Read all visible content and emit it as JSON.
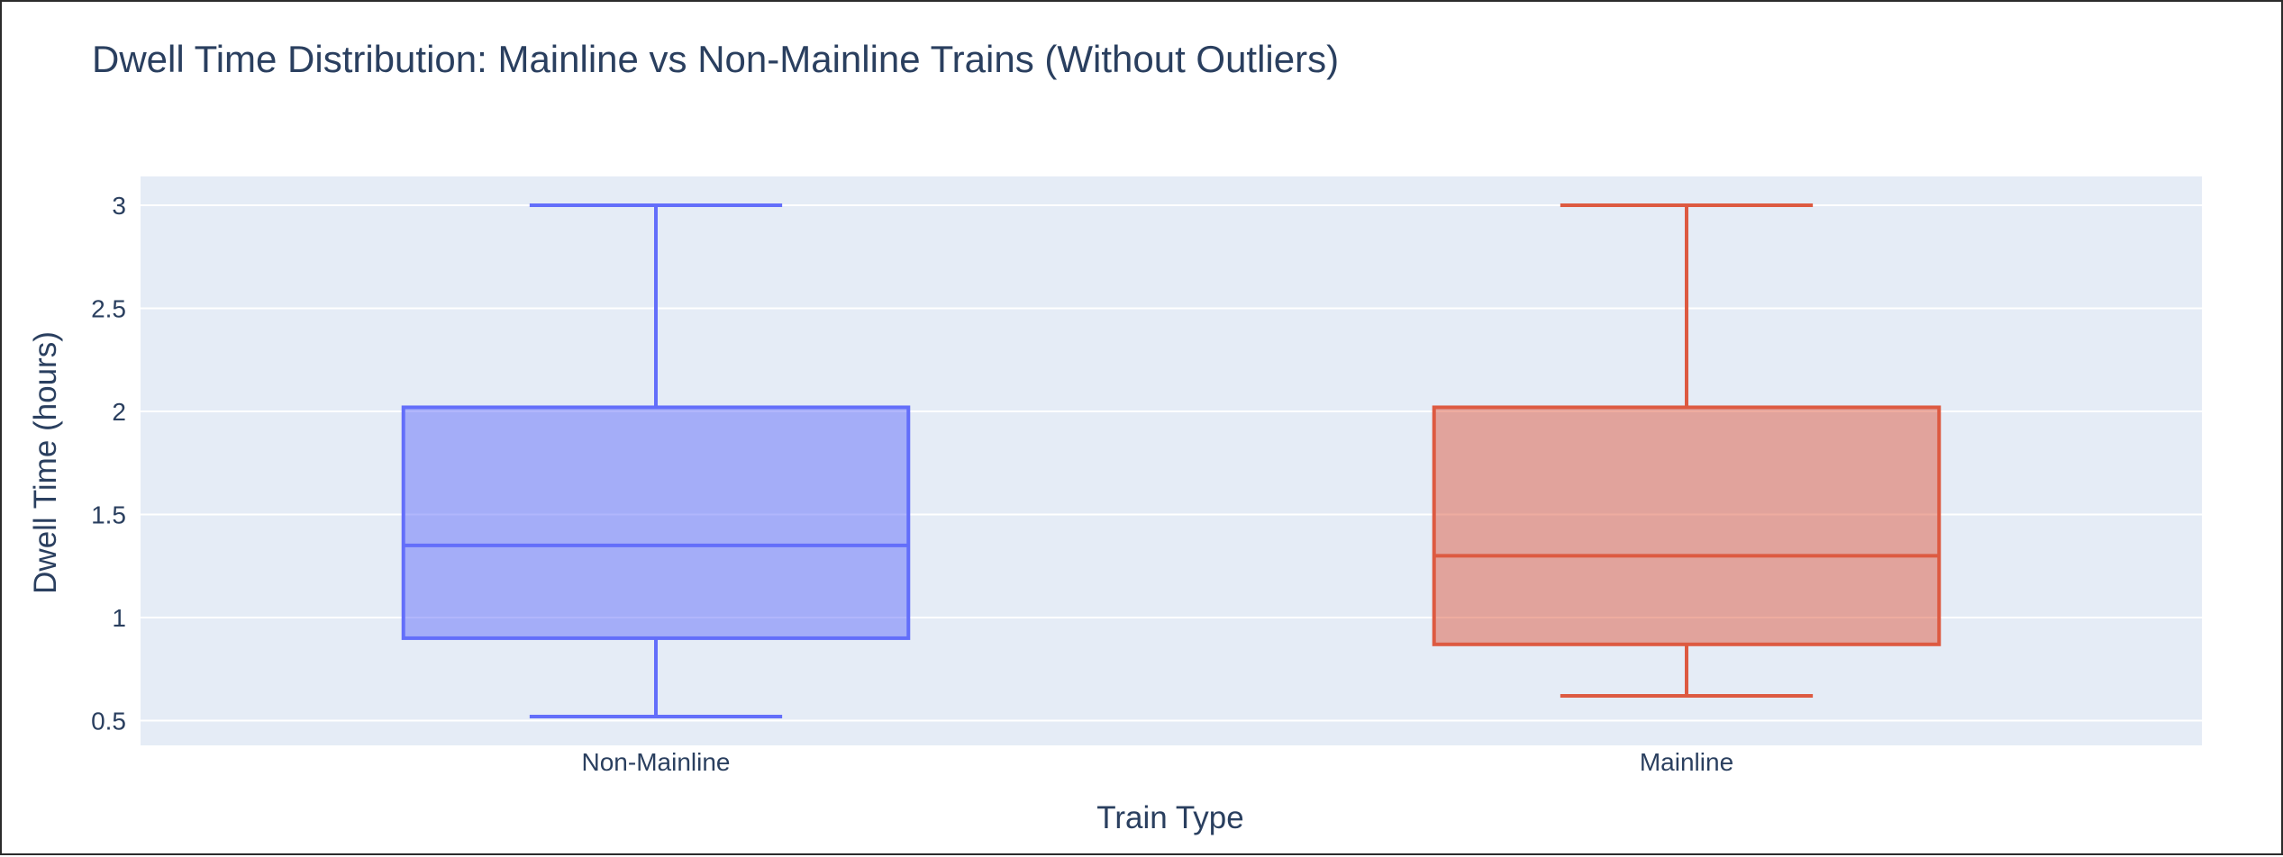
{
  "chart_data": {
    "type": "box",
    "title": "Dwell Time Distribution: Mainline vs Non-Mainline Trains (Without Outliers)",
    "xlabel": "Train Type",
    "ylabel": "Dwell Time (hours)",
    "ylim": [
      0.38,
      3.14
    ],
    "yticks": [
      0.5,
      1,
      1.5,
      2,
      2.5,
      3
    ],
    "ytick_labels": [
      "0.5",
      "1",
      "1.5",
      "2",
      "2.5",
      "3"
    ],
    "grid": true,
    "legend": "none",
    "categories": [
      "Non-Mainline",
      "Mainline"
    ],
    "series": [
      {
        "category": "Non-Mainline",
        "color": "#636efa",
        "fill": "rgba(99,110,250,0.5)",
        "min": 0.52,
        "q1": 0.9,
        "median": 1.35,
        "q3": 2.02,
        "max": 3.0
      },
      {
        "category": "Mainline",
        "color": "#dd5a41",
        "fill": "rgba(221,90,65,0.5)",
        "min": 0.62,
        "q1": 0.87,
        "median": 1.3,
        "q3": 2.02,
        "max": 3.0
      }
    ]
  },
  "colors": {
    "plot_background": "#e5ecf6",
    "grid": "#ffffff",
    "text": "#2a3f5f"
  }
}
